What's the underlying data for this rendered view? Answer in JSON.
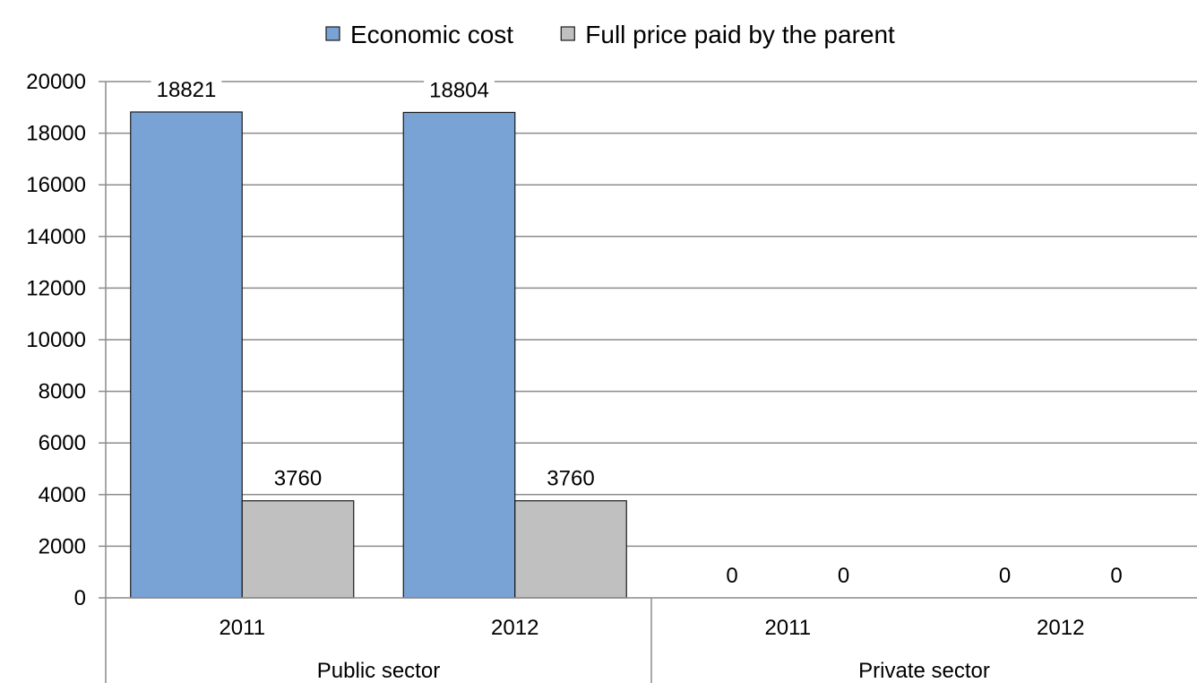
{
  "chart_data": {
    "type": "bar",
    "title": "",
    "xlabel": "",
    "ylabel": "",
    "ylim": [
      0,
      20000
    ],
    "yticks": [
      0,
      2000,
      4000,
      6000,
      8000,
      10000,
      12000,
      14000,
      16000,
      18000,
      20000
    ],
    "grid": true,
    "legend_position": "top",
    "groups": [
      {
        "label": "Public sector",
        "categories": [
          "2011",
          "2012"
        ]
      },
      {
        "label": "Private sector",
        "categories": [
          "2011",
          "2012"
        ]
      }
    ],
    "categories": [
      "2011",
      "2012",
      "2011",
      "2012"
    ],
    "series": [
      {
        "name": "Economic cost",
        "color": "#7aa3d5",
        "values": [
          18821,
          18804,
          0,
          0
        ]
      },
      {
        "name": "Full price paid by the parent",
        "color": "#c0c0c0",
        "values": [
          3760,
          3760,
          0,
          0
        ]
      }
    ],
    "data_labels": true
  }
}
